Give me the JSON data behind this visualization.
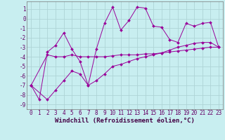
{
  "bg_color": "#c8eef0",
  "grid_color": "#aed4d6",
  "line_color": "#990099",
  "marker_color": "#990099",
  "xlabel": "Windchill (Refroidissement éolien,°C)",
  "xlabel_fontsize": 6.5,
  "tick_fontsize": 5.5,
  "ylim": [
    -9.5,
    1.8
  ],
  "xlim": [
    -0.5,
    23.5
  ],
  "yticks": [
    1,
    0,
    -1,
    -2,
    -3,
    -4,
    -5,
    -6,
    -7,
    -8,
    -9
  ],
  "xticks": [
    0,
    1,
    2,
    3,
    4,
    5,
    6,
    7,
    8,
    9,
    10,
    11,
    12,
    13,
    14,
    15,
    16,
    17,
    18,
    19,
    20,
    21,
    22,
    23
  ],
  "series": [
    {
      "x": [
        0,
        1,
        2,
        3,
        4,
        5,
        6,
        7,
        8,
        9,
        10,
        11,
        12,
        13,
        14,
        15,
        16,
        17,
        18,
        19,
        20,
        21,
        22,
        23
      ],
      "y": [
        -7.0,
        -8.5,
        -3.5,
        -2.8,
        -1.5,
        -3.2,
        -4.5,
        -7.0,
        -3.2,
        -0.5,
        1.2,
        -1.2,
        -0.2,
        1.2,
        1.1,
        -0.8,
        -0.9,
        -2.2,
        -2.5,
        -0.5,
        -0.8,
        -0.5,
        -0.4,
        -3.0
      ]
    },
    {
      "x": [
        0,
        2,
        3,
        4,
        5,
        6,
        7,
        8,
        9,
        10,
        11,
        12,
        13,
        14,
        15,
        16,
        17,
        18,
        19,
        20,
        21,
        22,
        23
      ],
      "y": [
        -7.0,
        -3.8,
        -4.0,
        -4.0,
        -3.8,
        -4.0,
        -4.0,
        -4.0,
        -4.0,
        -3.9,
        -3.8,
        -3.8,
        -3.8,
        -3.7,
        -3.7,
        -3.6,
        -3.5,
        -3.4,
        -3.3,
        -3.2,
        -3.1,
        -3.0,
        -3.0
      ]
    },
    {
      "x": [
        0,
        2,
        3,
        4,
        5,
        6,
        7,
        8,
        9,
        10,
        11,
        12,
        13,
        14,
        15,
        16,
        17,
        18,
        19,
        20,
        21,
        22,
        23
      ],
      "y": [
        -7.0,
        -8.5,
        -7.5,
        -6.5,
        -5.5,
        -5.8,
        -7.0,
        -6.5,
        -5.8,
        -5.0,
        -4.8,
        -4.5,
        -4.2,
        -4.0,
        -3.8,
        -3.6,
        -3.3,
        -3.0,
        -2.8,
        -2.6,
        -2.5,
        -2.5,
        -3.0
      ]
    }
  ]
}
